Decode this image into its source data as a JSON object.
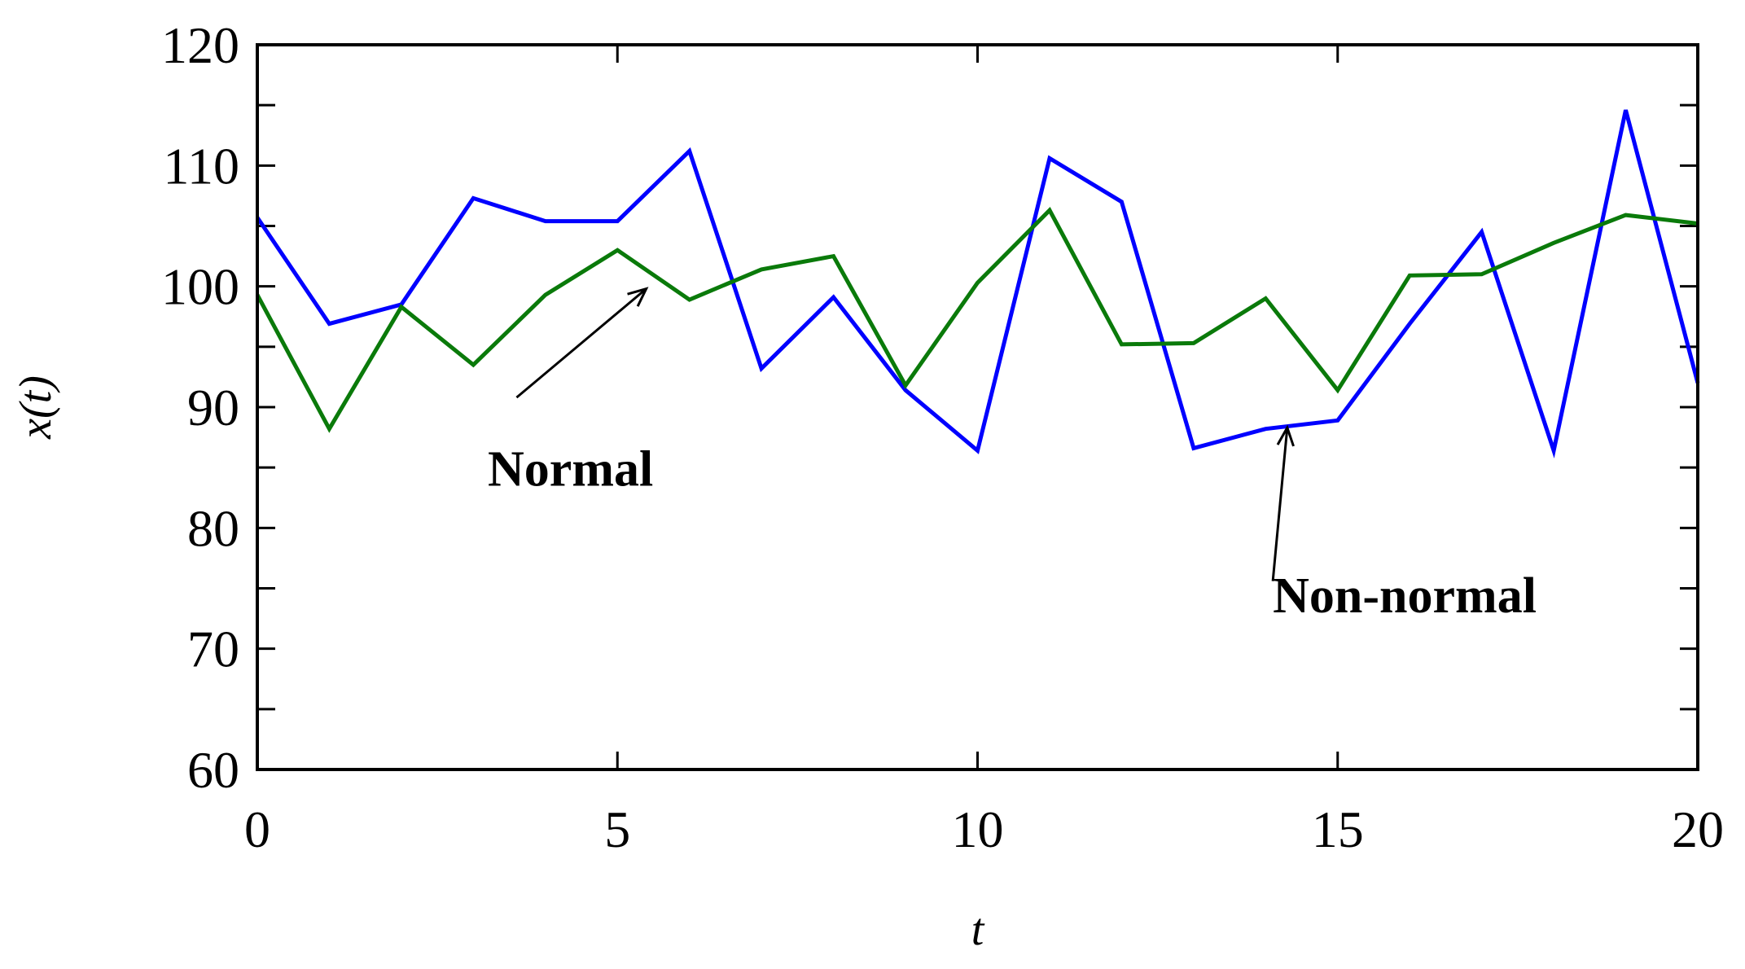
{
  "chart_data": {
    "type": "line",
    "xlabel": "t",
    "ylabel": "x(t)",
    "xlim": [
      0,
      20
    ],
    "ylim": [
      60,
      120
    ],
    "xticks": [
      0,
      5,
      10,
      15,
      20
    ],
    "yticks": [
      60,
      70,
      80,
      90,
      100,
      110,
      120
    ],
    "yminor_ticks": [
      65,
      75,
      85,
      95,
      105,
      115
    ],
    "grid": false,
    "x": [
      0,
      1,
      2,
      3,
      4,
      5,
      6,
      7,
      8,
      9,
      10,
      11,
      12,
      13,
      14,
      15,
      16,
      17,
      18,
      19,
      20
    ],
    "series": [
      {
        "color": "#0000ff",
        "values": [
          105.7,
          96.9,
          98.5,
          107.3,
          105.4,
          105.4,
          111.2,
          93.2,
          99.1,
          91.4,
          86.4,
          110.6,
          107.0,
          86.6,
          88.2,
          88.9,
          96.9,
          104.5,
          86.4,
          114.6,
          92.0
        ]
      },
      {
        "color": "#0a7a0a",
        "values": [
          99.3,
          88.2,
          98.3,
          93.5,
          99.3,
          103.0,
          98.9,
          101.4,
          102.5,
          91.8,
          100.3,
          106.3,
          95.2,
          95.3,
          99.0,
          91.4,
          100.9,
          101.0,
          103.6,
          105.9,
          105.2
        ]
      }
    ],
    "annotations": [
      {
        "text": "Normal",
        "arrow_target": [
          5.4,
          99.8
        ],
        "arrow_tail": [
          3.6,
          90.8
        ],
        "text_anchor": [
          3.2,
          83.5
        ]
      },
      {
        "text": "Non-normal",
        "arrow_target": [
          14.3,
          88.3
        ],
        "arrow_tail": [
          14.1,
          75.6
        ],
        "text_anchor": [
          14.1,
          73.0
        ]
      }
    ]
  }
}
